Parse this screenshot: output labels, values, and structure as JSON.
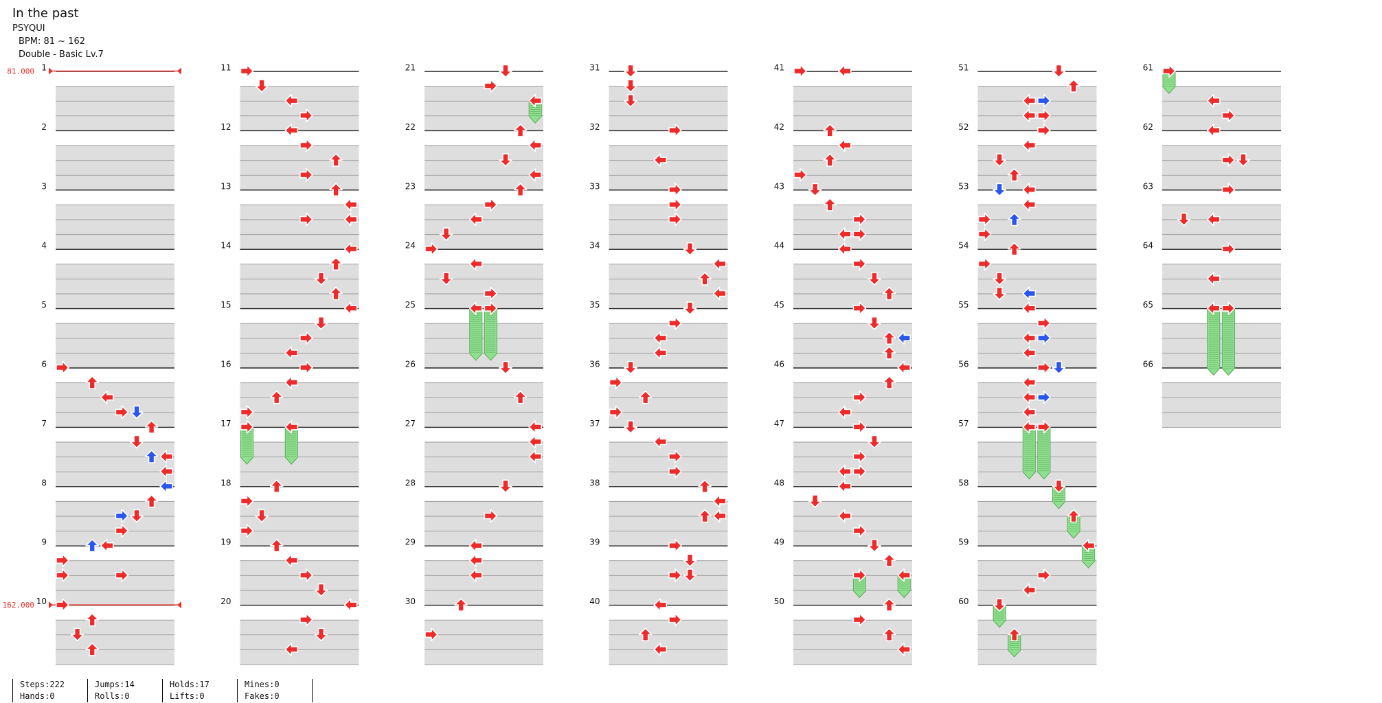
{
  "song": {
    "title": "In the past",
    "artist": "PSYQUI",
    "bpm_text": "BPM: 81 ~ 162",
    "chart_text": "Double - Basic Lv.7"
  },
  "bpm_markers": [
    {
      "measure": 1,
      "label": "81.000"
    },
    {
      "measure": 10,
      "label": "162.000"
    }
  ],
  "colors": {
    "arrow_red": "#ee2a2a",
    "arrow_blue": "#2a55ee",
    "hold_green": "#8ee08e",
    "bpm_line": "#e8302a"
  },
  "measure_count": 66,
  "measures_per_column": 10,
  "notes": [
    {
      "m": 6,
      "r": 0,
      "lane": 0
    },
    {
      "m": 6,
      "r": 1,
      "lane": 2
    },
    {
      "m": 6,
      "r": 2,
      "lane": 3
    },
    {
      "m": 6,
      "r": 3,
      "lane": 4
    },
    {
      "m": 6,
      "r": 3,
      "lane": 5,
      "c": "b"
    },
    {
      "m": 7,
      "r": 0,
      "lane": 6
    },
    {
      "m": 7,
      "r": 1,
      "lane": 5
    },
    {
      "m": 7,
      "r": 2,
      "lane": 7
    },
    {
      "m": 7,
      "r": 2,
      "lane": 6,
      "c": "b"
    },
    {
      "m": 7,
      "r": 3,
      "lane": 7
    },
    {
      "m": 8,
      "r": 0,
      "lane": 7
    },
    {
      "m": 8,
      "r": 0,
      "lane": 7,
      "c": "b"
    },
    {
      "m": 8,
      "r": 1,
      "lane": 6
    },
    {
      "m": 8,
      "r": 2,
      "lane": 5
    },
    {
      "m": 8,
      "r": 2,
      "lane": 4,
      "c": "b"
    },
    {
      "m": 8,
      "r": 3,
      "lane": 4
    },
    {
      "m": 9,
      "r": 0,
      "lane": 3
    },
    {
      "m": 9,
      "r": 0,
      "lane": 2,
      "c": "b"
    },
    {
      "m": 9,
      "r": 1,
      "lane": 0
    },
    {
      "m": 9,
      "r": 2,
      "lane": 0
    },
    {
      "m": 9,
      "r": 2,
      "lane": 4
    },
    {
      "m": 10,
      "r": 0,
      "lane": 0
    },
    {
      "m": 10,
      "r": 1,
      "lane": 2
    },
    {
      "m": 10,
      "r": 2,
      "lane": 1
    },
    {
      "m": 10,
      "r": 3,
      "lane": 2
    },
    {
      "m": 11,
      "r": 0,
      "lane": 0
    },
    {
      "m": 11,
      "r": 1,
      "lane": 1
    },
    {
      "m": 11,
      "r": 2,
      "lane": 3
    },
    {
      "m": 11,
      "r": 3,
      "lane": 4
    },
    {
      "m": 12,
      "r": 0,
      "lane": 3
    },
    {
      "m": 12,
      "r": 1,
      "lane": 4
    },
    {
      "m": 12,
      "r": 2,
      "lane": 6
    },
    {
      "m": 12,
      "r": 3,
      "lane": 4
    },
    {
      "m": 13,
      "r": 0,
      "lane": 6
    },
    {
      "m": 13,
      "r": 1,
      "lane": 7
    },
    {
      "m": 13,
      "r": 2,
      "lane": 4
    },
    {
      "m": 13,
      "r": 2,
      "lane": 7
    },
    {
      "m": 14,
      "r": 0,
      "lane": 7
    },
    {
      "m": 14,
      "r": 1,
      "lane": 6
    },
    {
      "m": 14,
      "r": 2,
      "lane": 5
    },
    {
      "m": 14,
      "r": 3,
      "lane": 6
    },
    {
      "m": 15,
      "r": 0,
      "lane": 7
    },
    {
      "m": 15,
      "r": 1,
      "lane": 5
    },
    {
      "m": 15,
      "r": 2,
      "lane": 4
    },
    {
      "m": 15,
      "r": 3,
      "lane": 3
    },
    {
      "m": 16,
      "r": 0,
      "lane": 4
    },
    {
      "m": 16,
      "r": 1,
      "lane": 3
    },
    {
      "m": 16,
      "r": 2,
      "lane": 2
    },
    {
      "m": 16,
      "r": 3,
      "lane": 0
    },
    {
      "m": 17,
      "r": 0,
      "lane": 0,
      "hold": 2
    },
    {
      "m": 17,
      "r": 0,
      "lane": 3,
      "hold": 2
    },
    {
      "m": 18,
      "r": 0,
      "lane": 2
    },
    {
      "m": 18,
      "r": 1,
      "lane": 0
    },
    {
      "m": 18,
      "r": 2,
      "lane": 1
    },
    {
      "m": 18,
      "r": 3,
      "lane": 0
    },
    {
      "m": 19,
      "r": 0,
      "lane": 2
    },
    {
      "m": 19,
      "r": 1,
      "lane": 3
    },
    {
      "m": 19,
      "r": 2,
      "lane": 4
    },
    {
      "m": 19,
      "r": 3,
      "lane": 5
    },
    {
      "m": 20,
      "r": 0,
      "lane": 7
    },
    {
      "m": 20,
      "r": 1,
      "lane": 4
    },
    {
      "m": 20,
      "r": 2,
      "lane": 5
    },
    {
      "m": 20,
      "r": 3,
      "lane": 3
    },
    {
      "m": 21,
      "r": 0,
      "lane": 5
    },
    {
      "m": 21,
      "r": 1,
      "lane": 4
    },
    {
      "m": 21,
      "r": 2,
      "lane": 7,
      "hold": 1
    },
    {
      "m": 22,
      "r": 0,
      "lane": 6
    },
    {
      "m": 22,
      "r": 1,
      "lane": 7
    },
    {
      "m": 22,
      "r": 2,
      "lane": 5
    },
    {
      "m": 22,
      "r": 3,
      "lane": 7
    },
    {
      "m": 23,
      "r": 0,
      "lane": 6
    },
    {
      "m": 23,
      "r": 1,
      "lane": 4
    },
    {
      "m": 23,
      "r": 2,
      "lane": 3
    },
    {
      "m": 23,
      "r": 3,
      "lane": 1
    },
    {
      "m": 24,
      "r": 0,
      "lane": 0
    },
    {
      "m": 24,
      "r": 1,
      "lane": 3
    },
    {
      "m": 24,
      "r": 2,
      "lane": 1
    },
    {
      "m": 24,
      "r": 3,
      "lane": 4
    },
    {
      "m": 25,
      "r": 0,
      "lane": 3,
      "hold": 3
    },
    {
      "m": 25,
      "r": 0,
      "lane": 4,
      "hold": 3
    },
    {
      "m": 26,
      "r": 0,
      "lane": 5
    },
    {
      "m": 26,
      "r": 2,
      "lane": 6
    },
    {
      "m": 27,
      "r": 0,
      "lane": 7
    },
    {
      "m": 27,
      "r": 1,
      "lane": 7
    },
    {
      "m": 27,
      "r": 2,
      "lane": 7
    },
    {
      "m": 28,
      "r": 0,
      "lane": 5
    },
    {
      "m": 28,
      "r": 2,
      "lane": 4
    },
    {
      "m": 29,
      "r": 0,
      "lane": 3
    },
    {
      "m": 29,
      "r": 1,
      "lane": 3
    },
    {
      "m": 29,
      "r": 2,
      "lane": 3
    },
    {
      "m": 30,
      "r": 0,
      "lane": 2
    },
    {
      "m": 30,
      "r": 2,
      "lane": 0
    },
    {
      "m": 31,
      "r": 0,
      "lane": 1
    },
    {
      "m": 31,
      "r": 1,
      "lane": 1
    },
    {
      "m": 31,
      "r": 2,
      "lane": 1
    },
    {
      "m": 32,
      "r": 0,
      "lane": 4
    },
    {
      "m": 32,
      "r": 2,
      "lane": 3
    },
    {
      "m": 33,
      "r": 0,
      "lane": 4
    },
    {
      "m": 33,
      "r": 1,
      "lane": 4
    },
    {
      "m": 33,
      "r": 2,
      "lane": 4
    },
    {
      "m": 34,
      "r": 0,
      "lane": 5
    },
    {
      "m": 34,
      "r": 1,
      "lane": 7
    },
    {
      "m": 34,
      "r": 2,
      "lane": 6
    },
    {
      "m": 34,
      "r": 3,
      "lane": 7
    },
    {
      "m": 35,
      "r": 0,
      "lane": 5
    },
    {
      "m": 35,
      "r": 1,
      "lane": 4
    },
    {
      "m": 35,
      "r": 2,
      "lane": 3
    },
    {
      "m": 35,
      "r": 3,
      "lane": 3
    },
    {
      "m": 36,
      "r": 0,
      "lane": 1
    },
    {
      "m": 36,
      "r": 1,
      "lane": 0
    },
    {
      "m": 36,
      "r": 2,
      "lane": 2
    },
    {
      "m": 36,
      "r": 3,
      "lane": 0
    },
    {
      "m": 37,
      "r": 0,
      "lane": 1
    },
    {
      "m": 37,
      "r": 1,
      "lane": 3
    },
    {
      "m": 37,
      "r": 2,
      "lane": 4
    },
    {
      "m": 37,
      "r": 3,
      "lane": 4
    },
    {
      "m": 38,
      "r": 0,
      "lane": 6
    },
    {
      "m": 38,
      "r": 1,
      "lane": 7
    },
    {
      "m": 38,
      "r": 2,
      "lane": 6
    },
    {
      "m": 38,
      "r": 2,
      "lane": 7
    },
    {
      "m": 39,
      "r": 0,
      "lane": 4
    },
    {
      "m": 39,
      "r": 1,
      "lane": 5
    },
    {
      "m": 39,
      "r": 2,
      "lane": 4
    },
    {
      "m": 39,
      "r": 2,
      "lane": 5
    },
    {
      "m": 40,
      "r": 0,
      "lane": 3
    },
    {
      "m": 40,
      "r": 1,
      "lane": 4
    },
    {
      "m": 40,
      "r": 2,
      "lane": 2
    },
    {
      "m": 40,
      "r": 3,
      "lane": 3
    },
    {
      "m": 41,
      "r": 0,
      "lane": 0
    },
    {
      "m": 41,
      "r": 0,
      "lane": 3
    },
    {
      "m": 42,
      "r": 0,
      "lane": 2
    },
    {
      "m": 42,
      "r": 1,
      "lane": 3
    },
    {
      "m": 42,
      "r": 2,
      "lane": 2
    },
    {
      "m": 42,
      "r": 3,
      "lane": 0
    },
    {
      "m": 43,
      "r": 0,
      "lane": 1
    },
    {
      "m": 43,
      "r": 1,
      "lane": 2
    },
    {
      "m": 43,
      "r": 2,
      "lane": 4
    },
    {
      "m": 43,
      "r": 3,
      "lane": 3
    },
    {
      "m": 43,
      "r": 3,
      "lane": 4
    },
    {
      "m": 44,
      "r": 0,
      "lane": 3
    },
    {
      "m": 44,
      "r": 1,
      "lane": 4
    },
    {
      "m": 44,
      "r": 2,
      "lane": 5
    },
    {
      "m": 44,
      "r": 3,
      "lane": 6
    },
    {
      "m": 45,
      "r": 0,
      "lane": 4
    },
    {
      "m": 45,
      "r": 1,
      "lane": 5
    },
    {
      "m": 45,
      "r": 2,
      "lane": 6
    },
    {
      "m": 45,
      "r": 2,
      "lane": 7,
      "c": "b"
    },
    {
      "m": 45,
      "r": 3,
      "lane": 6
    },
    {
      "m": 46,
      "r": 0,
      "lane": 7
    },
    {
      "m": 46,
      "r": 1,
      "lane": 6
    },
    {
      "m": 46,
      "r": 2,
      "lane": 4
    },
    {
      "m": 46,
      "r": 3,
      "lane": 3
    },
    {
      "m": 47,
      "r": 0,
      "lane": 4
    },
    {
      "m": 47,
      "r": 1,
      "lane": 5
    },
    {
      "m": 47,
      "r": 2,
      "lane": 4
    },
    {
      "m": 47,
      "r": 3,
      "lane": 3
    },
    {
      "m": 47,
      "r": 3,
      "lane": 4
    },
    {
      "m": 48,
      "r": 0,
      "lane": 3
    },
    {
      "m": 48,
      "r": 1,
      "lane": 1
    },
    {
      "m": 48,
      "r": 2,
      "lane": 3
    },
    {
      "m": 48,
      "r": 3,
      "lane": 4
    },
    {
      "m": 49,
      "r": 0,
      "lane": 5
    },
    {
      "m": 49,
      "r": 1,
      "lane": 6
    },
    {
      "m": 49,
      "r": 2,
      "lane": 4,
      "hold": 1
    },
    {
      "m": 49,
      "r": 2,
      "lane": 7,
      "hold": 1
    },
    {
      "m": 50,
      "r": 0,
      "lane": 6
    },
    {
      "m": 50,
      "r": 1,
      "lane": 4
    },
    {
      "m": 50,
      "r": 2,
      "lane": 6
    },
    {
      "m": 50,
      "r": 3,
      "lane": 7
    },
    {
      "m": 51,
      "r": 0,
      "lane": 5
    },
    {
      "m": 51,
      "r": 1,
      "lane": 6
    },
    {
      "m": 51,
      "r": 2,
      "lane": 3
    },
    {
      "m": 51,
      "r": 2,
      "lane": 4,
      "c": "b"
    },
    {
      "m": 51,
      "r": 3,
      "lane": 3
    },
    {
      "m": 51,
      "r": 3,
      "lane": 4
    },
    {
      "m": 52,
      "r": 0,
      "lane": 4
    },
    {
      "m": 52,
      "r": 1,
      "lane": 3
    },
    {
      "m": 52,
      "r": 2,
      "lane": 1
    },
    {
      "m": 52,
      "r": 3,
      "lane": 2
    },
    {
      "m": 53,
      "r": 0,
      "lane": 3
    },
    {
      "m": 53,
      "r": 0,
      "lane": 1,
      "c": "b"
    },
    {
      "m": 53,
      "r": 1,
      "lane": 3
    },
    {
      "m": 53,
      "r": 2,
      "lane": 0
    },
    {
      "m": 53,
      "r": 2,
      "lane": 2,
      "c": "b"
    },
    {
      "m": 53,
      "r": 3,
      "lane": 0
    },
    {
      "m": 54,
      "r": 0,
      "lane": 2
    },
    {
      "m": 54,
      "r": 1,
      "lane": 0
    },
    {
      "m": 54,
      "r": 2,
      "lane": 1
    },
    {
      "m": 54,
      "r": 3,
      "lane": 1
    },
    {
      "m": 54,
      "r": 3,
      "lane": 3,
      "c": "b"
    },
    {
      "m": 55,
      "r": 0,
      "lane": 3
    },
    {
      "m": 55,
      "r": 1,
      "lane": 4
    },
    {
      "m": 55,
      "r": 2,
      "lane": 3
    },
    {
      "m": 55,
      "r": 2,
      "lane": 4,
      "c": "b"
    },
    {
      "m": 55,
      "r": 3,
      "lane": 3
    },
    {
      "m": 56,
      "r": 0,
      "lane": 4
    },
    {
      "m": 56,
      "r": 0,
      "lane": 5,
      "c": "b"
    },
    {
      "m": 56,
      "r": 1,
      "lane": 3
    },
    {
      "m": 56,
      "r": 2,
      "lane": 3
    },
    {
      "m": 56,
      "r": 2,
      "lane": 4,
      "c": "b"
    },
    {
      "m": 56,
      "r": 3,
      "lane": 3
    },
    {
      "m": 57,
      "r": 0,
      "lane": 3,
      "hold": 3
    },
    {
      "m": 57,
      "r": 0,
      "lane": 4,
      "hold": 3
    },
    {
      "m": 58,
      "r": 0,
      "lane": 5,
      "hold": 1
    },
    {
      "m": 58,
      "r": 2,
      "lane": 6,
      "hold": 1
    },
    {
      "m": 59,
      "r": 0,
      "lane": 7,
      "hold": 1
    },
    {
      "m": 59,
      "r": 2,
      "lane": 4
    },
    {
      "m": 59,
      "r": 3,
      "lane": 3
    },
    {
      "m": 60,
      "r": 0,
      "lane": 1,
      "hold": 1
    },
    {
      "m": 60,
      "r": 2,
      "lane": 2,
      "hold": 1
    },
    {
      "m": 61,
      "r": 0,
      "lane": 0,
      "hold": 1
    },
    {
      "m": 61,
      "r": 2,
      "lane": 3
    },
    {
      "m": 61,
      "r": 3,
      "lane": 4
    },
    {
      "m": 62,
      "r": 0,
      "lane": 3
    },
    {
      "m": 62,
      "r": 2,
      "lane": 4
    },
    {
      "m": 62,
      "r": 2,
      "lane": 5
    },
    {
      "m": 63,
      "r": 0,
      "lane": 4
    },
    {
      "m": 63,
      "r": 2,
      "lane": 1
    },
    {
      "m": 63,
      "r": 2,
      "lane": 3
    },
    {
      "m": 64,
      "r": 0,
      "lane": 4
    },
    {
      "m": 64,
      "r": 2,
      "lane": 3
    },
    {
      "m": 65,
      "r": 0,
      "lane": 3,
      "hold": 4
    },
    {
      "m": 65,
      "r": 0,
      "lane": 4,
      "hold": 4
    }
  ],
  "stats": {
    "steps": "Steps:222",
    "hands": "Hands:0",
    "jumps": "Jumps:14",
    "rolls": "Rolls:0",
    "holds": "Holds:17",
    "lifts": "Lifts:0",
    "mines": "Mines:0",
    "fakes": "Fakes:0"
  }
}
